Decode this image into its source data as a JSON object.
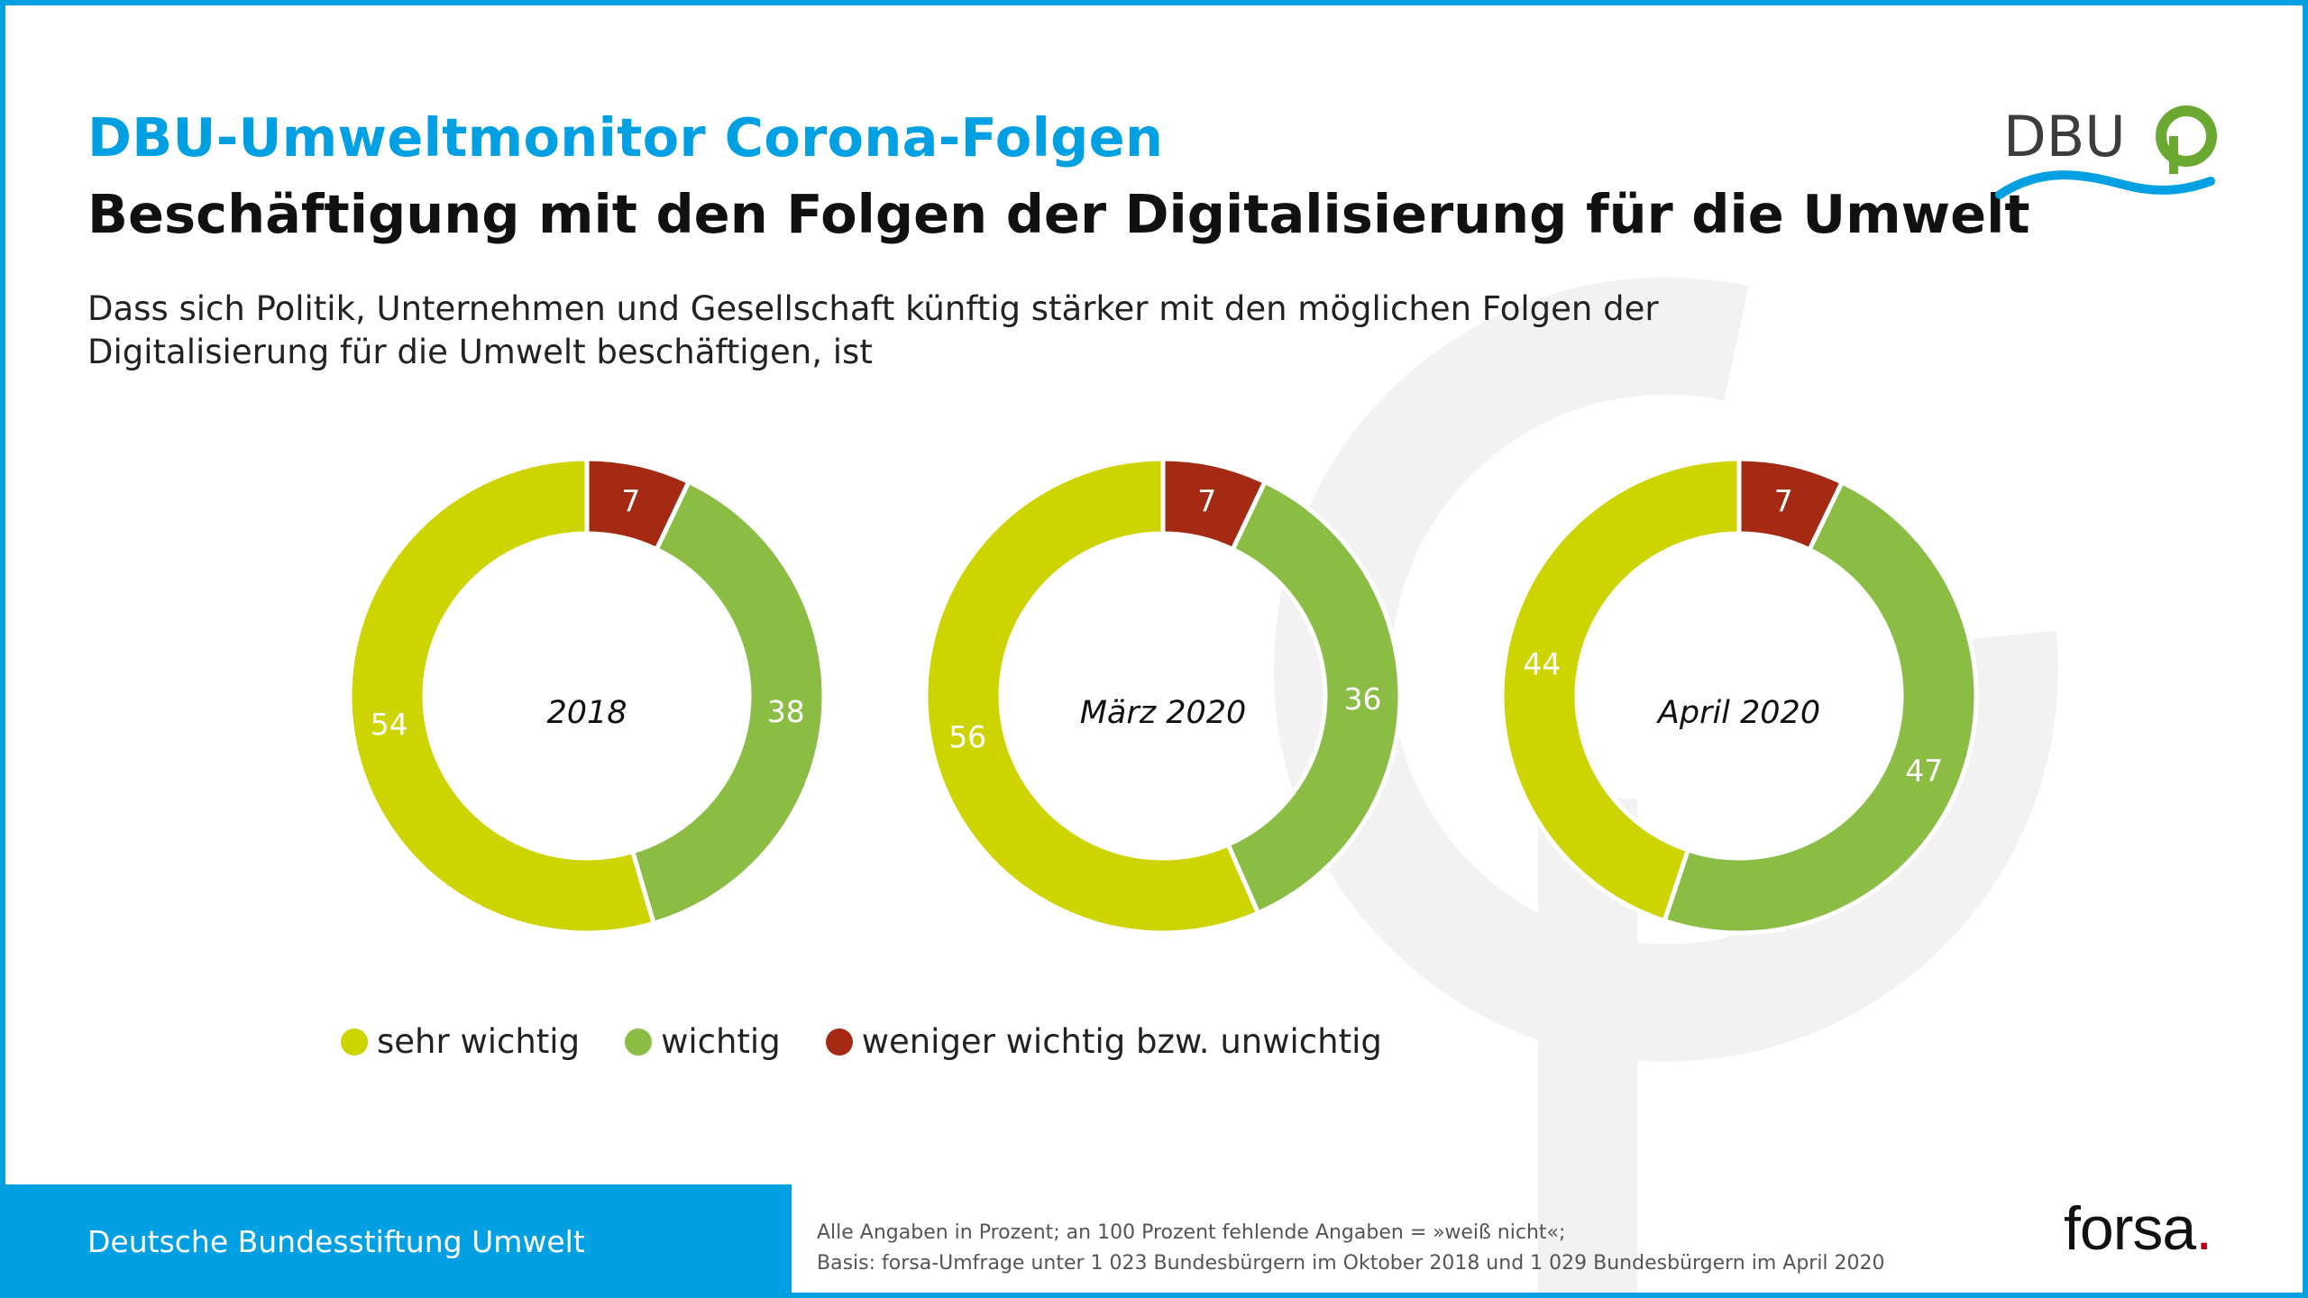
{
  "header": {
    "kicker": "DBU-Umweltmonitor Corona-Folgen",
    "title": "Beschäftigung mit den Folgen der Digitalisierung für die Umwelt",
    "question": "Dass sich Politik, Unternehmen und Gesellschaft künftig stärker mit den möglichen Folgen der Digitalisierung für die Umwelt beschäftigen, ist"
  },
  "logo": {
    "text": "DBU",
    "icon": "dbu-tree-logo"
  },
  "colors": {
    "sehr_wichtig": "#cdd400",
    "wichtig": "#8bbd45",
    "weniger_wichtig": "#a52a14",
    "accent": "#00a0e3"
  },
  "legend": {
    "items": [
      {
        "label": "sehr wichtig",
        "color": "#cdd400"
      },
      {
        "label": "wichtig",
        "color": "#8bbd45"
      },
      {
        "label": "weniger wichtig bzw. unwichtig",
        "color": "#a52a14"
      }
    ]
  },
  "chart_data": [
    {
      "type": "pie",
      "title": "2018",
      "categories": [
        "weniger wichtig bzw. unwichtig",
        "wichtig",
        "sehr wichtig"
      ],
      "values": [
        7,
        38,
        54
      ]
    },
    {
      "type": "pie",
      "title": "März 2020",
      "categories": [
        "weniger wichtig bzw. unwichtig",
        "wichtig",
        "sehr wichtig"
      ],
      "values": [
        7,
        36,
        56
      ]
    },
    {
      "type": "pie",
      "title": "April 2020",
      "categories": [
        "weniger wichtig bzw. unwichtig",
        "wichtig",
        "sehr wichtig"
      ],
      "values": [
        7,
        47,
        44
      ]
    }
  ],
  "footer": {
    "organization": "Deutsche Bundesstiftung Umwelt",
    "note_line1": "Alle Angaben in Prozent; an 100 Prozent fehlende Angaben = »weiß nicht«;",
    "note_line2": "Basis: forsa-Umfrage unter 1 023 Bundesbürgern im Oktober 2018 und 1 029 Bundesbürgern im April 2020",
    "brand": "forsa",
    "brand_dot": "."
  }
}
